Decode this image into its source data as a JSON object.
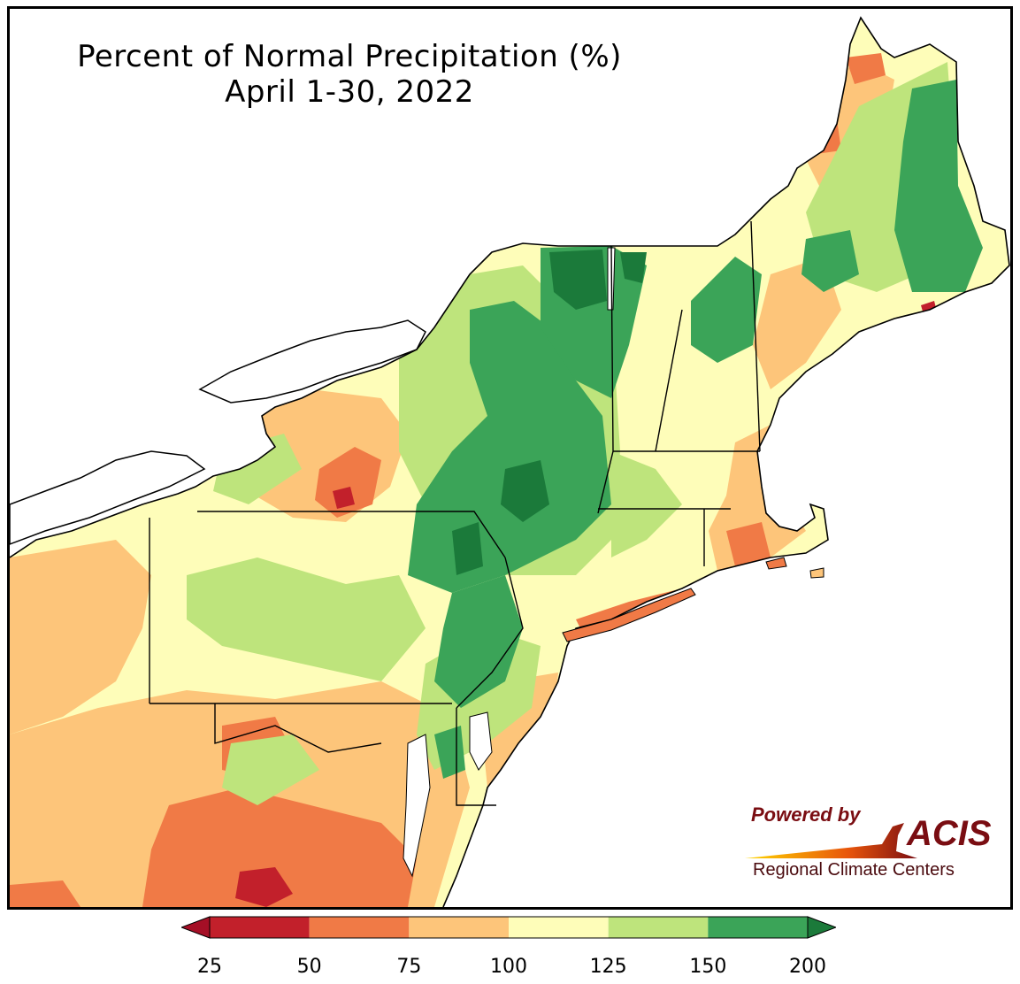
{
  "title": {
    "line1": "Percent of Normal Precipitation (%)",
    "line2": "April 1-30, 2022"
  },
  "logo": {
    "powered_by": "Powered by",
    "acis": "ACIS",
    "regional": "Regional Climate Centers"
  },
  "colorbar": {
    "bins": [
      {
        "from": 25,
        "to": 50,
        "color": "#c2202b"
      },
      {
        "from": 50,
        "to": 75,
        "color": "#f07a46"
      },
      {
        "from": 75,
        "to": 100,
        "color": "#fdc57a"
      },
      {
        "from": 100,
        "to": 125,
        "color": "#fefdb9"
      },
      {
        "from": 125,
        "to": 150,
        "color": "#bee47c"
      },
      {
        "from": 150,
        "to": 200,
        "color": "#3ba458"
      }
    ],
    "under_color": "#a50f26",
    "over_color": "#1b7a3a",
    "tick_labels": [
      "25",
      "50",
      "75",
      "100",
      "125",
      "150",
      "200"
    ]
  },
  "colors": {
    "water": "#ffffff",
    "border": "#000000",
    "county_line": "#9a9a9a"
  }
}
